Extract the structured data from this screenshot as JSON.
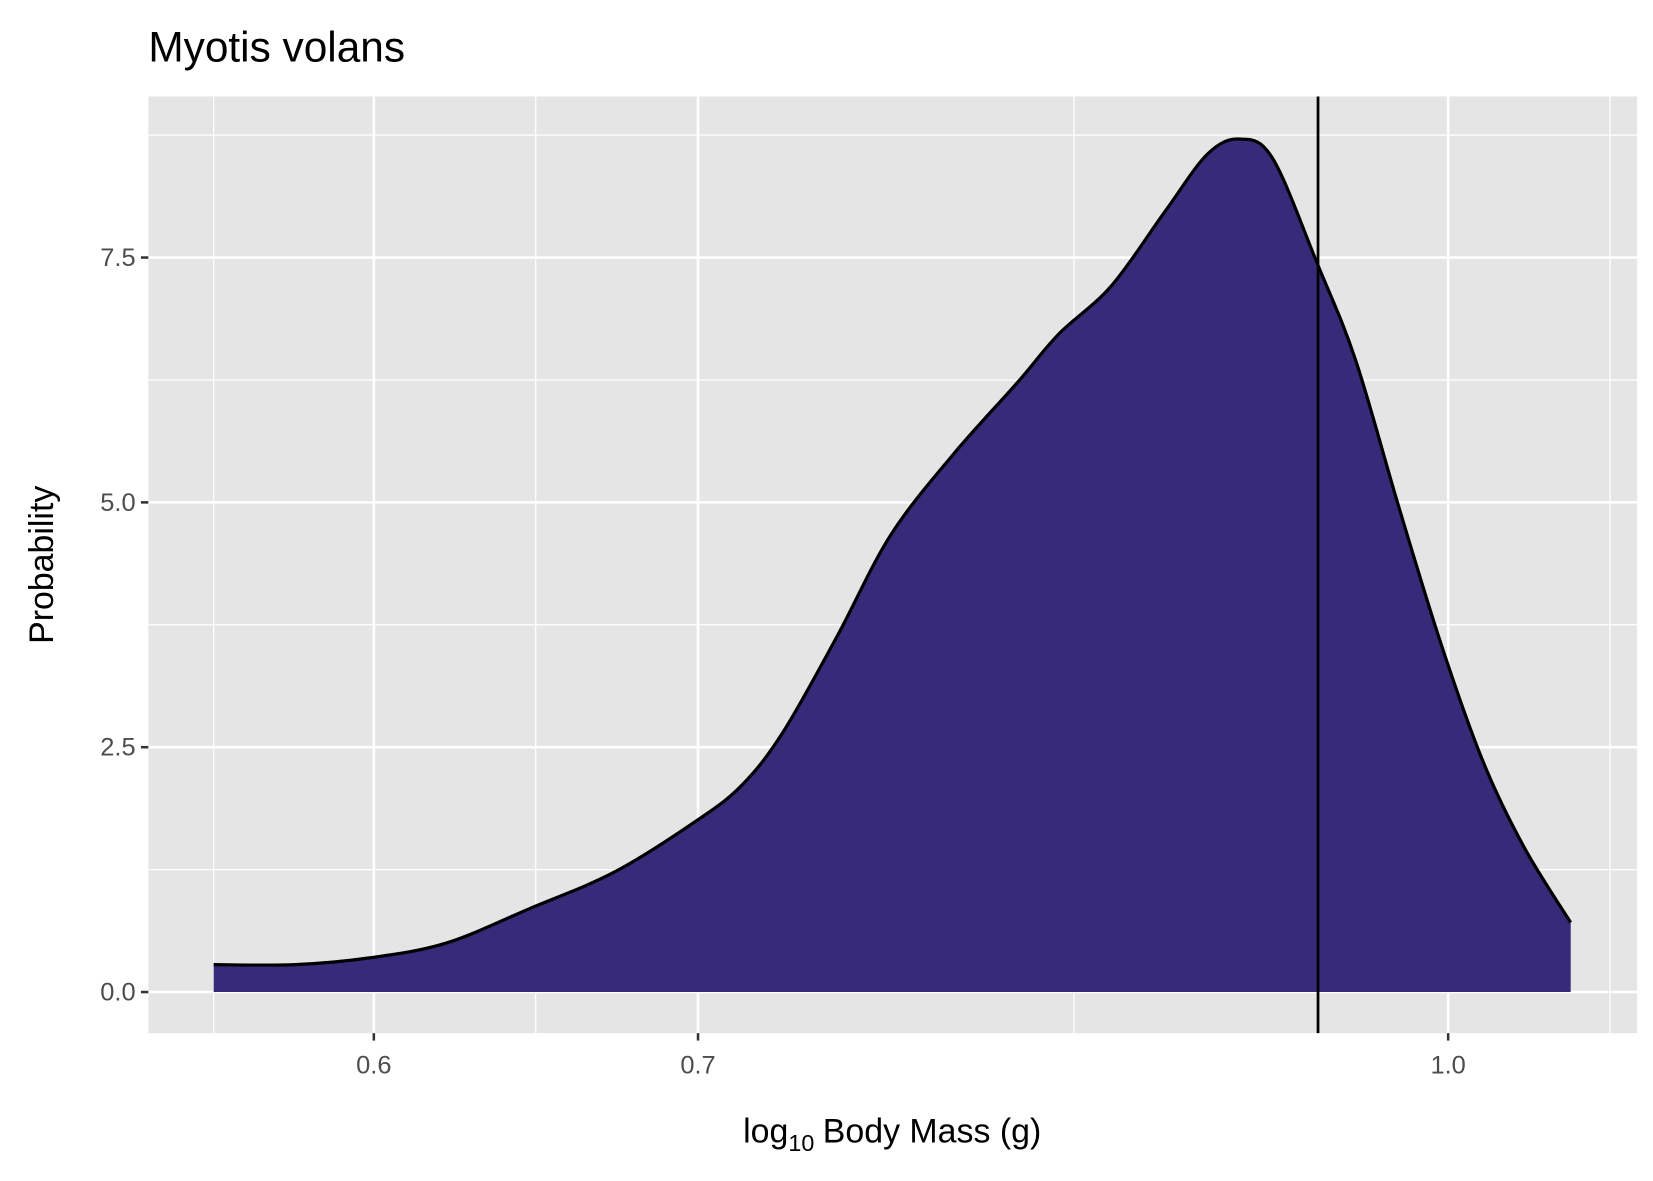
{
  "chart_data": {
    "type": "density",
    "title": "Myotis volans",
    "x_label": {
      "log": "log",
      "base": "10",
      "rest": "Body Mass (g)"
    },
    "y_label": "Probability",
    "x_log": true,
    "x": [
      0.556,
      0.578,
      0.599,
      0.621,
      0.646,
      0.673,
      0.7,
      0.715,
      0.729,
      0.748,
      0.767,
      0.79,
      0.815,
      0.831,
      0.852,
      0.874,
      0.892,
      0.906,
      0.92,
      0.94,
      0.957,
      0.977,
      0.997,
      1.017,
      1.037,
      1.06
    ],
    "values": [
      0.28,
      0.28,
      0.35,
      0.5,
      0.85,
      1.23,
      1.76,
      2.12,
      2.66,
      3.64,
      4.66,
      5.48,
      6.23,
      6.72,
      7.21,
      7.97,
      8.56,
      8.71,
      8.51,
      7.42,
      6.45,
      4.94,
      3.53,
      2.34,
      1.47,
      0.71
    ],
    "color": "#372a78",
    "vline": 0.94,
    "xlim": [
      0.539,
      1.094
    ],
    "ylim": [
      -0.42,
      9.145
    ],
    "xticks": [
      0.6,
      0.7,
      {
        "value": 1,
        "label": "1.0"
      }
    ],
    "yticks": [
      {
        "value": 0,
        "label": "0.0"
      },
      2.5,
      {
        "value": 5,
        "label": "5.0"
      },
      7.5
    ],
    "x_minor_grid": [
      0.556,
      0.648,
      0.837,
      1.08
    ],
    "y_minor_grid": [
      1.25,
      3.75,
      6.25,
      8.75
    ],
    "grid": true
  }
}
